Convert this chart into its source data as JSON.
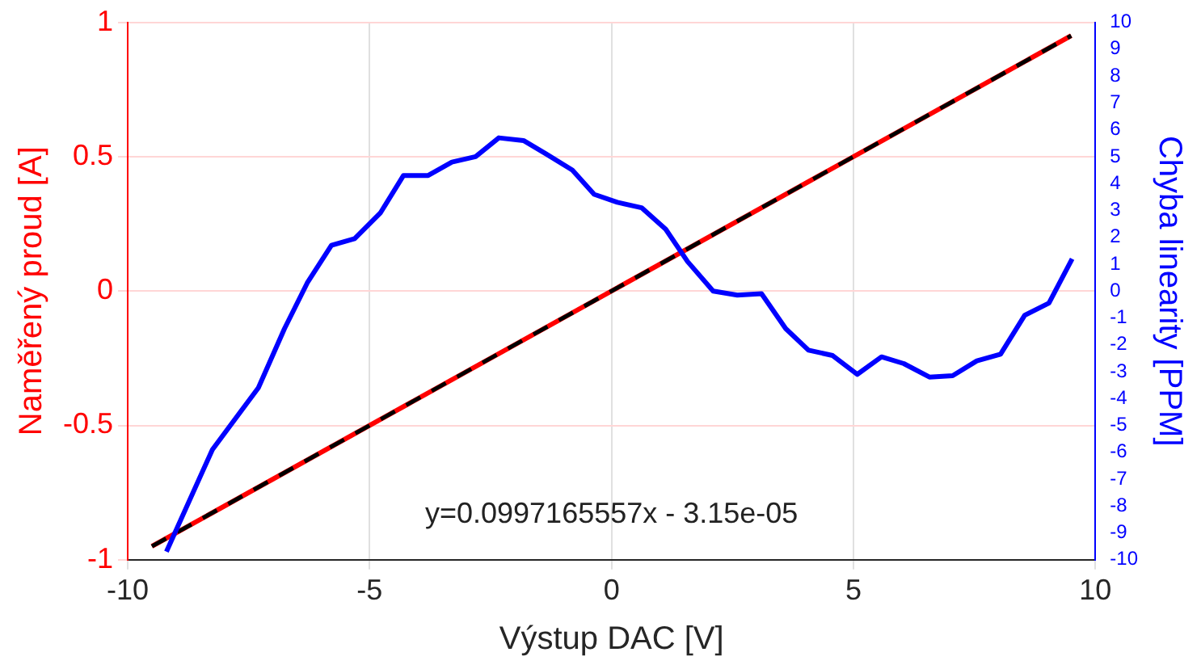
{
  "chart_data": {
    "type": "line",
    "xlabel": "Výstup DAC [V]",
    "ylabel": "Naměřený proud [A]",
    "y2label": "Chyba linearity [PPM]",
    "xlim": [
      -10,
      10
    ],
    "xticks": [
      -10,
      -5,
      0,
      5,
      10
    ],
    "ylim": [
      -1,
      1
    ],
    "yticks": [
      -1,
      -0.5,
      0,
      0.5,
      1
    ],
    "y2lim": [
      -10,
      10
    ],
    "y2ticks": [
      -10,
      -9,
      -8,
      -7,
      -6,
      -5,
      -4,
      -3,
      -2,
      -1,
      0,
      1,
      2,
      3,
      4,
      5,
      6,
      7,
      8,
      9,
      10
    ],
    "grid": true,
    "legend": false,
    "marker": "none",
    "annotations": [
      "y=0.0997165557x - 3.15e-05"
    ],
    "series": [
      {
        "color": "#ff0000",
        "line_style": "solid",
        "x": [
          -9.5,
          9.5
        ],
        "values": [
          -0.95,
          0.95
        ]
      },
      {
        "color": "#000000",
        "line_style": "dashed",
        "x": [
          -9.5,
          9.5
        ],
        "values": [
          -0.95,
          0.95
        ]
      },
      {
        "color": "#0000ff",
        "line_style": "solid",
        "axis": "y2",
        "x": [
          -9.2,
          -8.25,
          -7.3,
          -6.76,
          -6.29,
          -5.79,
          -5.31,
          -4.78,
          -4.3,
          -3.79,
          -3.3,
          -2.81,
          -2.33,
          -1.82,
          -1.35,
          -0.81,
          -0.36,
          0.12,
          0.62,
          1.12,
          1.57,
          2.1,
          2.6,
          3.1,
          3.6,
          4.07,
          4.57,
          5.08,
          5.58,
          6.04,
          6.57,
          7.05,
          7.55,
          8.04,
          8.54,
          9.04,
          9.52
        ],
        "values": [
          -9.7,
          -5.9,
          -3.6,
          -1.4,
          0.3,
          1.7,
          1.95,
          2.9,
          4.3,
          4.3,
          4.8,
          5.0,
          5.7,
          5.6,
          5.1,
          4.5,
          3.6,
          3.3,
          3.1,
          2.3,
          1.1,
          0,
          -0.15,
          -0.1,
          -1.4,
          -2.2,
          -2.4,
          -3.1,
          -2.45,
          -2.7,
          -3.2,
          -3.15,
          -2.6,
          -2.35,
          -0.9,
          -0.45,
          1.2
        ]
      }
    ]
  }
}
